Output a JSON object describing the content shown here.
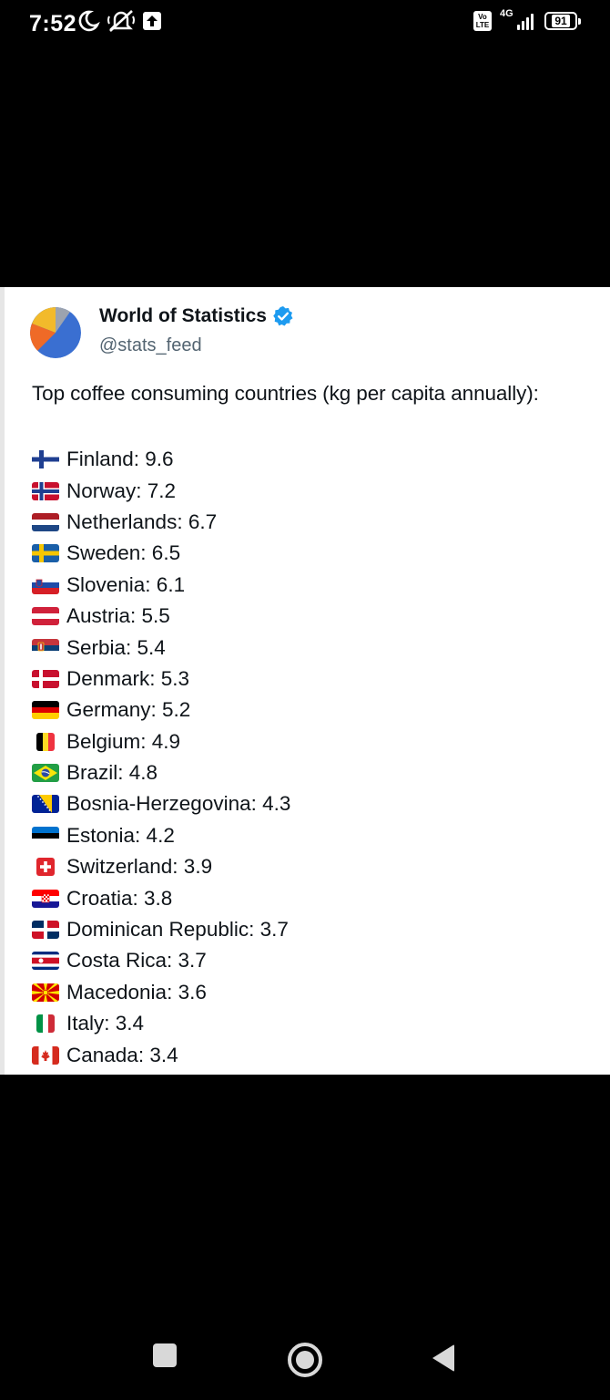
{
  "status_bar": {
    "time": "7:52",
    "icons": [
      "moon-icon",
      "notifications-off-icon",
      "upload-icon"
    ],
    "volte": "Vo LTE",
    "network": "4G",
    "battery": "91"
  },
  "tweet": {
    "author_name": "World of Statistics",
    "handle": "@stats_feed",
    "verified": true,
    "text": "Top coffee consuming countries (kg per capita annually):",
    "items": [
      {
        "flag": "finland-flag",
        "label": "Finland: 9.6"
      },
      {
        "flag": "norway-flag",
        "label": "Norway: 7.2"
      },
      {
        "flag": "netherlands-flag",
        "label": "Netherlands: 6.7"
      },
      {
        "flag": "sweden-flag",
        "label": "Sweden: 6.5"
      },
      {
        "flag": "slovenia-flag",
        "label": "Slovenia: 6.1"
      },
      {
        "flag": "austria-flag",
        "label": "Austria: 5.5"
      },
      {
        "flag": "serbia-flag",
        "label": "Serbia: 5.4"
      },
      {
        "flag": "denmark-flag",
        "label": "Denmark: 5.3"
      },
      {
        "flag": "germany-flag",
        "label": "Germany: 5.2"
      },
      {
        "flag": "belgium-flag",
        "label": "Belgium: 4.9"
      },
      {
        "flag": "brazil-flag",
        "label": "Brazil: 4.8"
      },
      {
        "flag": "bosnia-herzegovina-flag",
        "label": "Bosnia-Herzegovina: 4.3"
      },
      {
        "flag": "estonia-flag",
        "label": "Estonia: 4.2"
      },
      {
        "flag": "switzerland-flag",
        "label": "Switzerland: 3.9"
      },
      {
        "flag": "croatia-flag",
        "label": "Croatia: 3.8"
      },
      {
        "flag": "dominican-republic-flag",
        "label": "Dominican Republic: 3.7"
      },
      {
        "flag": "costa-rica-flag",
        "label": "Costa Rica: 3.7"
      },
      {
        "flag": "macedonia-flag",
        "label": "Macedonia: 3.6"
      },
      {
        "flag": "italy-flag",
        "label": "Italy: 3.4"
      },
      {
        "flag": "canada-flag",
        "label": "Canada: 3.4"
      }
    ]
  },
  "colors": {
    "background": "#000000",
    "card": "#ffffff",
    "text": "#0f1419",
    "handle": "#536471",
    "verified": "#1d9bf0"
  },
  "navigation": [
    "recents-button",
    "home-button",
    "back-button"
  ]
}
